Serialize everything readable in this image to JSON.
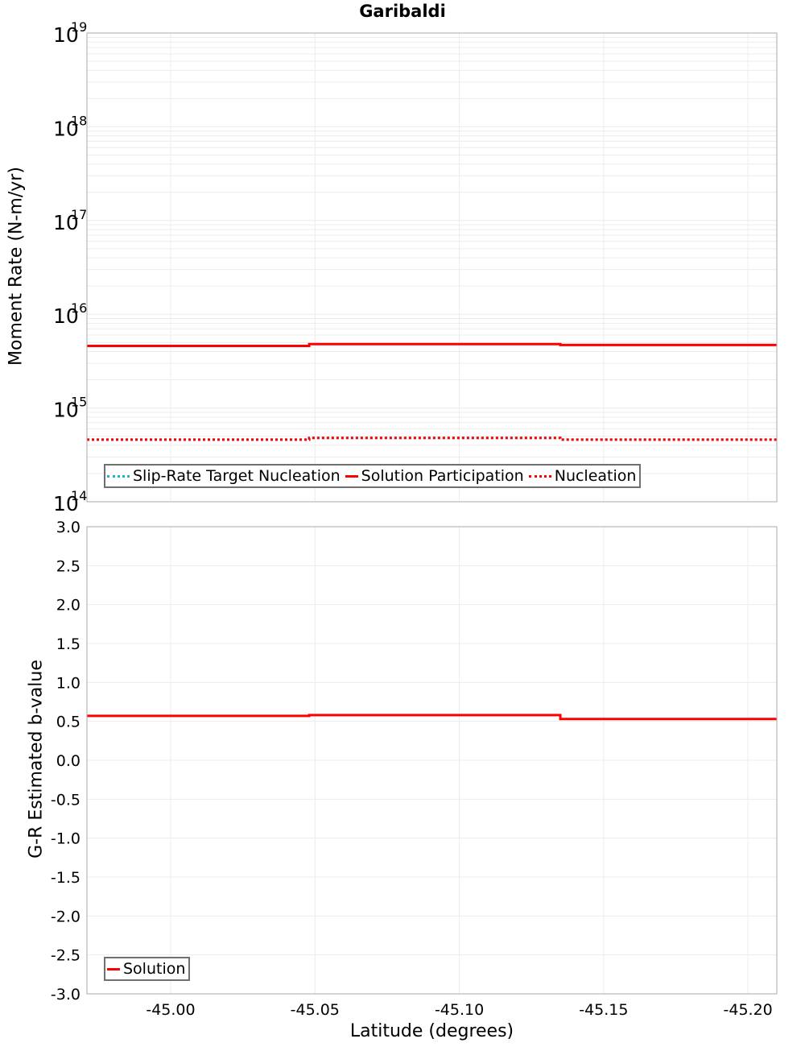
{
  "title": "Garibaldi",
  "top_plot": {
    "ylabel": "Moment Rate (N-m/yr)",
    "y_ticks": [
      {
        "base": "10",
        "exp": "19"
      },
      {
        "base": "10",
        "exp": "18"
      },
      {
        "base": "10",
        "exp": "17"
      },
      {
        "base": "10",
        "exp": "16"
      },
      {
        "base": "10",
        "exp": "15"
      },
      {
        "base": "10",
        "exp": "14"
      }
    ],
    "legend": [
      {
        "label": "Slip-Rate Target Nucleation",
        "color": "#1fb5c0",
        "style": "dotted"
      },
      {
        "label": "Solution Participation",
        "color": "#ff0000",
        "style": "solid"
      },
      {
        "label": "Nucleation",
        "color": "#ff0000",
        "style": "dotted"
      }
    ]
  },
  "bottom_plot": {
    "ylabel": "G-R Estimated b-value",
    "y_ticks": [
      "3.0",
      "2.5",
      "2.0",
      "1.5",
      "1.0",
      "0.5",
      "0.0",
      "-0.5",
      "-1.0",
      "-1.5",
      "-2.0",
      "-2.5",
      "-3.0"
    ],
    "legend": [
      {
        "label": "Solution",
        "color": "#ff0000",
        "style": "solid"
      }
    ]
  },
  "x_axis": {
    "label": "Latitude (degrees)",
    "ticks": [
      "-45.00",
      "-45.05",
      "-45.10",
      "-45.15",
      "-45.20"
    ]
  },
  "chart_data": [
    {
      "type": "line",
      "title": "Garibaldi",
      "xlabel": "Latitude (degrees)",
      "ylabel": "Moment Rate (N-m/yr)",
      "yscale": "log",
      "ylim": [
        100000000000000.0,
        1e+19
      ],
      "xlim": [
        -44.971,
        -45.21
      ],
      "x_ticks": [
        -45.0,
        -45.05,
        -45.1,
        -45.15,
        -45.2
      ],
      "grid": true,
      "legend_position": "lower left",
      "step": true,
      "x": [
        -44.971,
        -45.048,
        -45.135,
        -45.21
      ],
      "series": [
        {
          "name": "Slip-Rate Target Nucleation",
          "color": "#1fb5c0",
          "style": "dotted",
          "values": [
            460000000000000.0,
            480000000000000.0,
            460000000000000.0
          ]
        },
        {
          "name": "Solution Participation",
          "color": "#ff0000",
          "style": "solid",
          "values": [
            4600000000000000.0,
            4800000000000000.0,
            4700000000000000.0
          ]
        },
        {
          "name": "Nucleation",
          "color": "#ff0000",
          "style": "dotted",
          "values": [
            460000000000000.0,
            480000000000000.0,
            460000000000000.0
          ]
        }
      ]
    },
    {
      "type": "line",
      "xlabel": "Latitude (degrees)",
      "ylabel": "G-R Estimated b-value",
      "ylim": [
        -3.0,
        3.0
      ],
      "xlim": [
        -44.971,
        -45.21
      ],
      "x_ticks": [
        -45.0,
        -45.05,
        -45.1,
        -45.15,
        -45.2
      ],
      "y_ticks": [
        3.0,
        2.5,
        2.0,
        1.5,
        1.0,
        0.5,
        0.0,
        -0.5,
        -1.0,
        -1.5,
        -2.0,
        -2.5,
        -3.0
      ],
      "grid": true,
      "legend_position": "lower left",
      "step": true,
      "x": [
        -44.971,
        -45.048,
        -45.135,
        -45.21
      ],
      "series": [
        {
          "name": "Solution",
          "color": "#ff0000",
          "style": "solid",
          "values": [
            0.57,
            0.58,
            0.53
          ]
        }
      ]
    }
  ]
}
